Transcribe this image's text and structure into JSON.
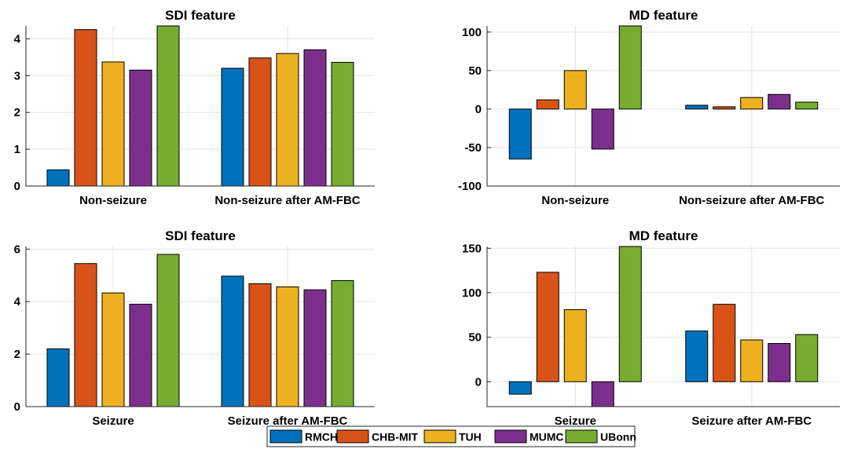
{
  "colors": {
    "RMCH": "#0072BD",
    "CHB-MIT": "#D95319",
    "TUH": "#EDB120",
    "MUMC": "#7E2F8E",
    "UBonn": "#77AC30"
  },
  "legend": {
    "placement": "bottom-center",
    "entries": [
      "RMCH",
      "CHB-MIT",
      "TUH",
      "MUMC",
      "UBonn"
    ]
  },
  "chart_data": [
    {
      "type": "bar",
      "title": "SDI feature",
      "categories": [
        "Non-seizure",
        "Non-seizure after AM-FBC"
      ],
      "ylim": [
        0,
        4.35
      ],
      "yticks": [
        0,
        1,
        2,
        3,
        4
      ],
      "grid": true,
      "series": [
        {
          "name": "RMCH",
          "values": [
            0.44,
            3.2
          ]
        },
        {
          "name": "CHB-MIT",
          "values": [
            4.25,
            3.48
          ]
        },
        {
          "name": "TUH",
          "values": [
            3.37,
            3.6
          ]
        },
        {
          "name": "MUMC",
          "values": [
            3.15,
            3.7
          ]
        },
        {
          "name": "UBonn",
          "values": [
            4.35,
            3.36
          ]
        }
      ]
    },
    {
      "type": "bar",
      "title": "MD feature",
      "categories": [
        "Non-seizure",
        "Non-seizure after AM-FBC"
      ],
      "ylim": [
        -100,
        108
      ],
      "yticks": [
        -100,
        -50,
        0,
        50,
        100
      ],
      "grid": true,
      "series": [
        {
          "name": "RMCH",
          "values": [
            -65,
            5
          ]
        },
        {
          "name": "CHB-MIT",
          "values": [
            12,
            3
          ]
        },
        {
          "name": "TUH",
          "values": [
            50,
            15
          ]
        },
        {
          "name": "MUMC",
          "values": [
            -52,
            19
          ]
        },
        {
          "name": "UBonn",
          "values": [
            108,
            9
          ]
        }
      ]
    },
    {
      "type": "bar",
      "title": "SDI feature",
      "categories": [
        "Seizure",
        "Seizure after AM-FBC"
      ],
      "ylim": [
        0,
        6.1
      ],
      "yticks": [
        0,
        2,
        4,
        6
      ],
      "grid": true,
      "series": [
        {
          "name": "RMCH",
          "values": [
            2.2,
            4.97
          ]
        },
        {
          "name": "CHB-MIT",
          "values": [
            5.45,
            4.68
          ]
        },
        {
          "name": "TUH",
          "values": [
            4.33,
            4.56
          ]
        },
        {
          "name": "MUMC",
          "values": [
            3.9,
            4.45
          ]
        },
        {
          "name": "UBonn",
          "values": [
            5.8,
            4.8
          ]
        }
      ]
    },
    {
      "type": "bar",
      "title": "MD feature",
      "categories": [
        "Seizure",
        "Seizure after AM-FBC"
      ],
      "ylim": [
        -28,
        152
      ],
      "yticks": [
        0,
        50,
        100,
        150
      ],
      "grid": true,
      "series": [
        {
          "name": "RMCH",
          "values": [
            -14,
            57
          ]
        },
        {
          "name": "CHB-MIT",
          "values": [
            123,
            87
          ]
        },
        {
          "name": "TUH",
          "values": [
            81,
            47
          ]
        },
        {
          "name": "MUMC",
          "values": [
            -28,
            43
          ]
        },
        {
          "name": "UBonn",
          "values": [
            152,
            53
          ]
        }
      ]
    }
  ]
}
